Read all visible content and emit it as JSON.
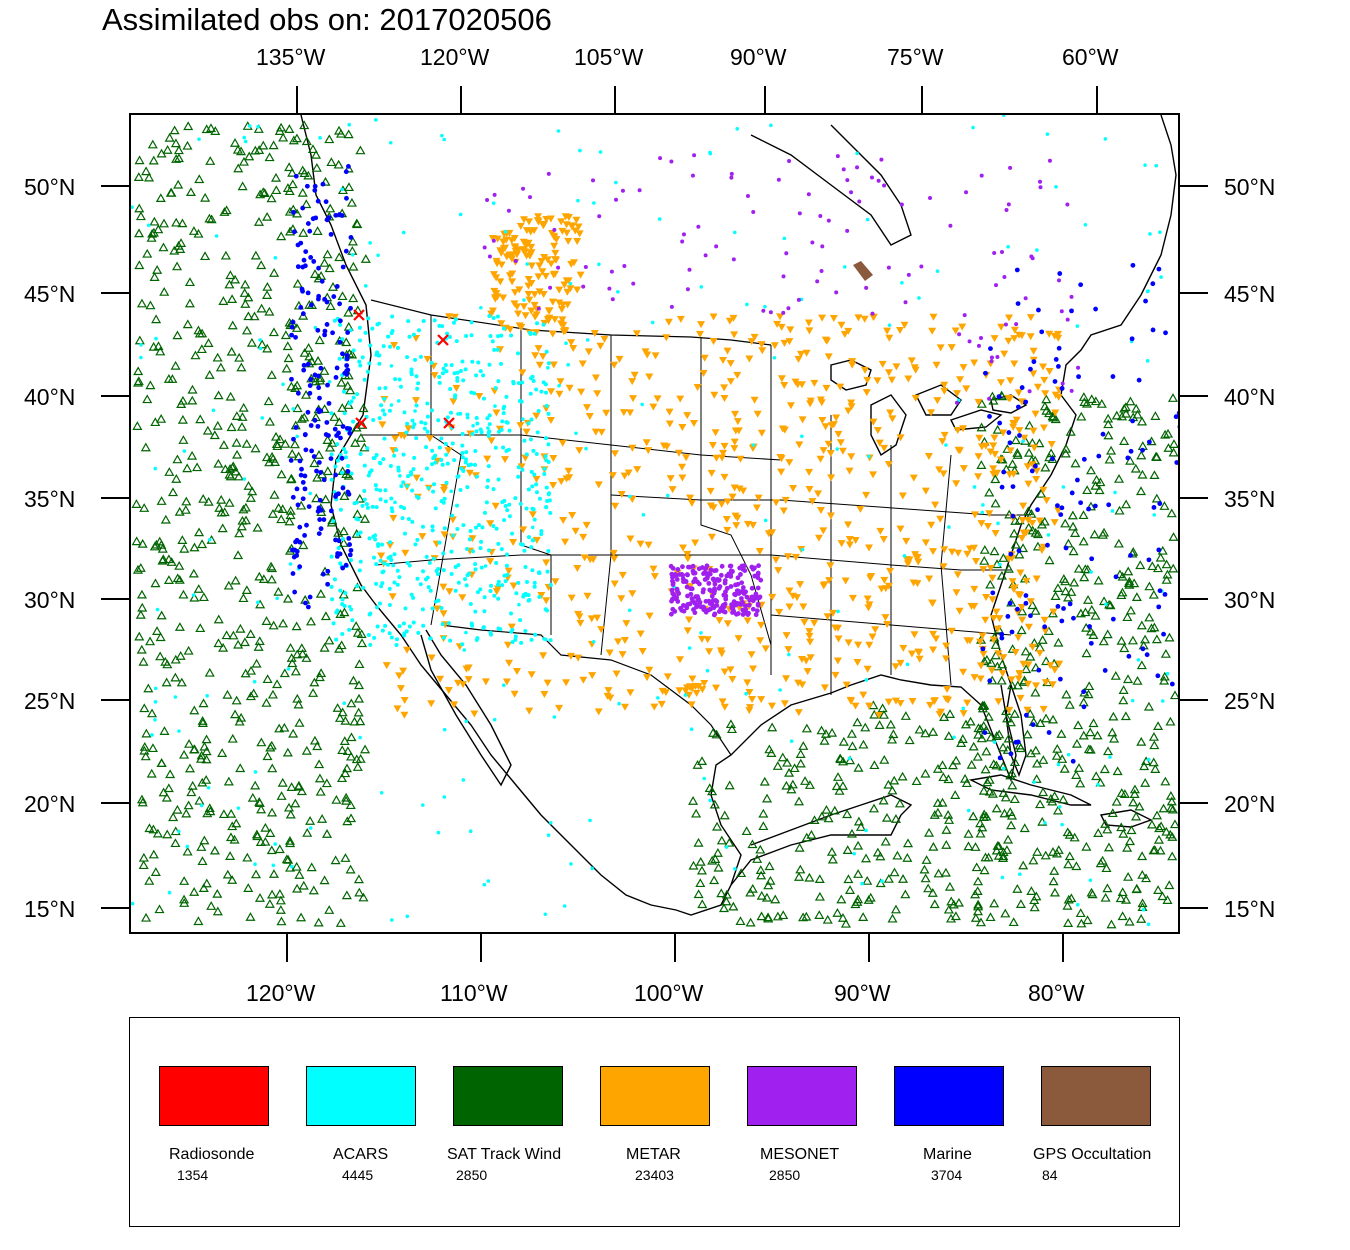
{
  "title": "Assimilated obs on: 2017020506",
  "top_lon_labels": [
    "135°W",
    "120°W",
    "105°W",
    "90°W",
    "75°W",
    "60°W"
  ],
  "bottom_lon_labels": [
    "120°W",
    "110°W",
    "100°W",
    "90°W",
    "80°W"
  ],
  "lat_labels": [
    "50°N",
    "45°N",
    "40°N",
    "35°N",
    "30°N",
    "25°N",
    "20°N",
    "15°N"
  ],
  "legend": [
    {
      "name": "Radiosonde",
      "count": "1354",
      "color": "#ff0000"
    },
    {
      "name": "ACARS",
      "count": "4445",
      "color": "#00ffff"
    },
    {
      "name": "SAT Track Wind",
      "count": "2850",
      "color": "#006400"
    },
    {
      "name": "METAR",
      "count": "23403",
      "color": "#ffa500"
    },
    {
      "name": "MESONET",
      "count": "2850",
      "color": "#a020f0"
    },
    {
      "name": "Marine",
      "count": "3704",
      "color": "#0000ff"
    },
    {
      "name": "GPS Occultation",
      "count": "84",
      "color": "#8b5a3c"
    }
  ]
}
